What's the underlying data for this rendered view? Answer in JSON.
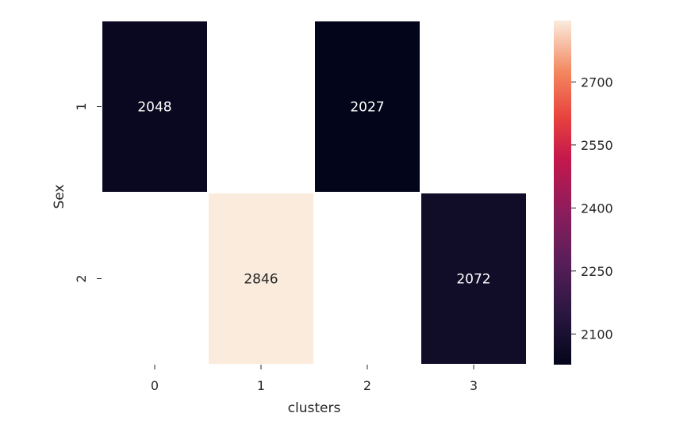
{
  "chart_data": {
    "type": "heatmap",
    "title": "",
    "xlabel": "clusters",
    "ylabel": "Sex",
    "x_categories": [
      "0",
      "1",
      "2",
      "3"
    ],
    "y_categories": [
      "1",
      "2"
    ],
    "cells": [
      {
        "x": "0",
        "y": "1",
        "value": 2048,
        "label": "2048"
      },
      {
        "x": "2",
        "y": "1",
        "value": 2027,
        "label": "2027"
      },
      {
        "x": "1",
        "y": "2",
        "value": 2846,
        "label": "2846"
      },
      {
        "x": "3",
        "y": "2",
        "value": 2072,
        "label": "2072"
      }
    ],
    "colorbar": {
      "min": 2027,
      "max": 2846,
      "ticks": [
        "2100",
        "2250",
        "2400",
        "2550",
        "2700"
      ],
      "colormap": "rocket"
    },
    "empty_cells_color": "#ffffff"
  }
}
